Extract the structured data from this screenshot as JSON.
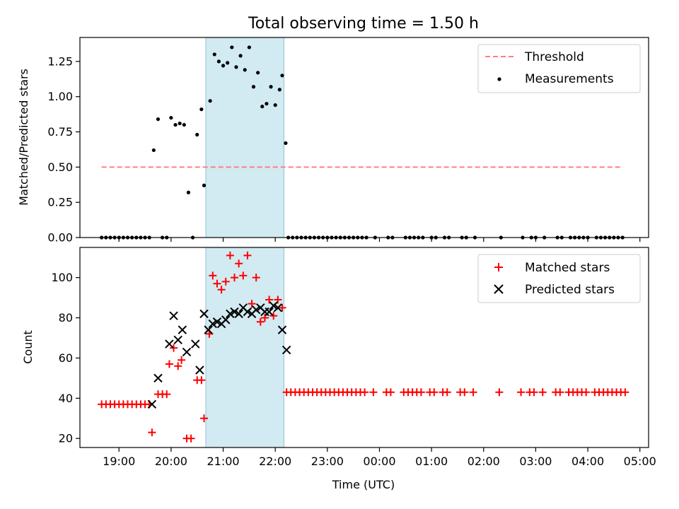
{
  "chart_data": [
    {
      "type": "scatter",
      "title": "Total observing time = 1.50 h",
      "ylabel": "Matched/Predicted stars",
      "xlabel": "",
      "ylim": [
        0,
        1.42
      ],
      "yticks": [
        0.0,
        0.25,
        0.5,
        0.75,
        1.0,
        1.25
      ],
      "ytick_labels": [
        "0.00",
        "0.25",
        "0.50",
        "0.75",
        "1.00",
        "1.25"
      ],
      "grid": false,
      "legend_position": "top-right",
      "shaded_region": {
        "x_start": "20:40",
        "x_end": "22:10",
        "color": "#add8e6"
      },
      "series": [
        {
          "name": "Threshold",
          "style": "dashed-line",
          "color": "#ff7f7f",
          "points": [
            {
              "x": "18:40",
              "y": 0.5
            },
            {
              "x": "04:40",
              "y": 0.5
            }
          ]
        },
        {
          "name": "Measurements",
          "style": "dot",
          "color": "#000000",
          "points": [
            {
              "x": "18:40",
              "y": 0
            },
            {
              "x": "18:45",
              "y": 0
            },
            {
              "x": "18:50",
              "y": 0
            },
            {
              "x": "18:55",
              "y": 0
            },
            {
              "x": "19:00",
              "y": 0
            },
            {
              "x": "19:05",
              "y": 0
            },
            {
              "x": "19:10",
              "y": 0
            },
            {
              "x": "19:15",
              "y": 0
            },
            {
              "x": "19:20",
              "y": 0
            },
            {
              "x": "19:25",
              "y": 0
            },
            {
              "x": "19:30",
              "y": 0
            },
            {
              "x": "19:35",
              "y": 0
            },
            {
              "x": "19:40",
              "y": 0.62
            },
            {
              "x": "19:45",
              "y": 0.84
            },
            {
              "x": "19:50",
              "y": 0
            },
            {
              "x": "19:55",
              "y": 0
            },
            {
              "x": "20:00",
              "y": 0.85
            },
            {
              "x": "20:05",
              "y": 0.8
            },
            {
              "x": "20:10",
              "y": 0.81
            },
            {
              "x": "20:15",
              "y": 0.8
            },
            {
              "x": "20:20",
              "y": 0.32
            },
            {
              "x": "20:25",
              "y": 0
            },
            {
              "x": "20:30",
              "y": 0.73
            },
            {
              "x": "20:35",
              "y": 0.91
            },
            {
              "x": "20:38",
              "y": 0.37
            },
            {
              "x": "20:45",
              "y": 0.97
            },
            {
              "x": "20:50",
              "y": 1.3
            },
            {
              "x": "20:55",
              "y": 1.25
            },
            {
              "x": "21:00",
              "y": 1.22
            },
            {
              "x": "21:05",
              "y": 1.24
            },
            {
              "x": "21:10",
              "y": 1.35
            },
            {
              "x": "21:15",
              "y": 1.21
            },
            {
              "x": "21:20",
              "y": 1.29
            },
            {
              "x": "21:25",
              "y": 1.19
            },
            {
              "x": "21:30",
              "y": 1.35
            },
            {
              "x": "21:35",
              "y": 1.07
            },
            {
              "x": "21:40",
              "y": 1.17
            },
            {
              "x": "21:45",
              "y": 0.93
            },
            {
              "x": "21:50",
              "y": 0.95
            },
            {
              "x": "21:55",
              "y": 1.07
            },
            {
              "x": "22:00",
              "y": 0.94
            },
            {
              "x": "22:05",
              "y": 1.05
            },
            {
              "x": "22:08",
              "y": 1.15
            },
            {
              "x": "22:12",
              "y": 0.67
            },
            {
              "x": "22:15",
              "y": 0
            },
            {
              "x": "22:20",
              "y": 0
            },
            {
              "x": "22:25",
              "y": 0
            },
            {
              "x": "22:30",
              "y": 0
            },
            {
              "x": "22:35",
              "y": 0
            },
            {
              "x": "22:40",
              "y": 0
            },
            {
              "x": "22:45",
              "y": 0
            },
            {
              "x": "22:50",
              "y": 0
            },
            {
              "x": "22:55",
              "y": 0
            },
            {
              "x": "23:00",
              "y": 0
            },
            {
              "x": "23:05",
              "y": 0
            },
            {
              "x": "23:10",
              "y": 0
            },
            {
              "x": "23:15",
              "y": 0
            },
            {
              "x": "23:20",
              "y": 0
            },
            {
              "x": "23:25",
              "y": 0
            },
            {
              "x": "23:30",
              "y": 0
            },
            {
              "x": "23:35",
              "y": 0
            },
            {
              "x": "23:40",
              "y": 0
            },
            {
              "x": "23:45",
              "y": 0
            },
            {
              "x": "23:55",
              "y": 0
            },
            {
              "x": "00:10",
              "y": 0
            },
            {
              "x": "00:15",
              "y": 0
            },
            {
              "x": "00:30",
              "y": 0
            },
            {
              "x": "00:35",
              "y": 0
            },
            {
              "x": "00:40",
              "y": 0
            },
            {
              "x": "00:45",
              "y": 0
            },
            {
              "x": "00:50",
              "y": 0
            },
            {
              "x": "01:00",
              "y": 0
            },
            {
              "x": "01:05",
              "y": 0
            },
            {
              "x": "01:15",
              "y": 0
            },
            {
              "x": "01:20",
              "y": 0
            },
            {
              "x": "01:35",
              "y": 0
            },
            {
              "x": "01:40",
              "y": 0
            },
            {
              "x": "01:50",
              "y": 0
            },
            {
              "x": "02:20",
              "y": 0
            },
            {
              "x": "02:45",
              "y": 0
            },
            {
              "x": "02:55",
              "y": 0
            },
            {
              "x": "03:00",
              "y": 0
            },
            {
              "x": "03:10",
              "y": 0
            },
            {
              "x": "03:25",
              "y": 0
            },
            {
              "x": "03:30",
              "y": 0
            },
            {
              "x": "03:40",
              "y": 0
            },
            {
              "x": "03:45",
              "y": 0
            },
            {
              "x": "03:50",
              "y": 0
            },
            {
              "x": "03:55",
              "y": 0
            },
            {
              "x": "04:00",
              "y": 0
            },
            {
              "x": "04:10",
              "y": 0
            },
            {
              "x": "04:15",
              "y": 0
            },
            {
              "x": "04:20",
              "y": 0
            },
            {
              "x": "04:25",
              "y": 0
            },
            {
              "x": "04:30",
              "y": 0
            },
            {
              "x": "04:35",
              "y": 0
            },
            {
              "x": "04:40",
              "y": 0
            }
          ]
        }
      ]
    },
    {
      "type": "scatter",
      "title": "",
      "ylabel": "Count",
      "xlabel": "Time (UTC)",
      "ylim": [
        15.5,
        115
      ],
      "yticks": [
        20,
        40,
        60,
        80,
        100
      ],
      "ytick_labels": [
        "20",
        "40",
        "60",
        "80",
        "100"
      ],
      "grid": false,
      "legend_position": "top-right",
      "shaded_region": {
        "x_start": "20:40",
        "x_end": "22:10",
        "color": "#add8e6"
      },
      "series": [
        {
          "name": "Matched stars",
          "style": "plus",
          "color": "#ff0000",
          "points": [
            {
              "x": "18:40",
              "y": 37
            },
            {
              "x": "18:45",
              "y": 37
            },
            {
              "x": "18:50",
              "y": 37
            },
            {
              "x": "18:55",
              "y": 37
            },
            {
              "x": "19:00",
              "y": 37
            },
            {
              "x": "19:05",
              "y": 37
            },
            {
              "x": "19:10",
              "y": 37
            },
            {
              "x": "19:15",
              "y": 37
            },
            {
              "x": "19:20",
              "y": 37
            },
            {
              "x": "19:25",
              "y": 37
            },
            {
              "x": "19:30",
              "y": 37
            },
            {
              "x": "19:35",
              "y": 37
            },
            {
              "x": "19:38",
              "y": 23
            },
            {
              "x": "19:45",
              "y": 42
            },
            {
              "x": "19:50",
              "y": 42
            },
            {
              "x": "19:55",
              "y": 42
            },
            {
              "x": "19:58",
              "y": 57
            },
            {
              "x": "20:03",
              "y": 65
            },
            {
              "x": "20:08",
              "y": 56
            },
            {
              "x": "20:12",
              "y": 59
            },
            {
              "x": "20:18",
              "y": 20
            },
            {
              "x": "20:23",
              "y": 20
            },
            {
              "x": "20:30",
              "y": 49
            },
            {
              "x": "20:35",
              "y": 49
            },
            {
              "x": "20:38",
              "y": 30
            },
            {
              "x": "20:44",
              "y": 72
            },
            {
              "x": "20:48",
              "y": 101
            },
            {
              "x": "20:53",
              "y": 97
            },
            {
              "x": "20:58",
              "y": 94
            },
            {
              "x": "21:03",
              "y": 98
            },
            {
              "x": "21:08",
              "y": 111
            },
            {
              "x": "21:13",
              "y": 100
            },
            {
              "x": "21:18",
              "y": 107
            },
            {
              "x": "21:23",
              "y": 101
            },
            {
              "x": "21:28",
              "y": 111
            },
            {
              "x": "21:33",
              "y": 87
            },
            {
              "x": "21:38",
              "y": 100
            },
            {
              "x": "21:43",
              "y": 78
            },
            {
              "x": "21:48",
              "y": 80
            },
            {
              "x": "21:53",
              "y": 89
            },
            {
              "x": "21:58",
              "y": 81
            },
            {
              "x": "22:03",
              "y": 89
            },
            {
              "x": "22:08",
              "y": 85
            },
            {
              "x": "22:13",
              "y": 43
            },
            {
              "x": "22:18",
              "y": 43
            },
            {
              "x": "22:23",
              "y": 43
            },
            {
              "x": "22:28",
              "y": 43
            },
            {
              "x": "22:33",
              "y": 43
            },
            {
              "x": "22:38",
              "y": 43
            },
            {
              "x": "22:43",
              "y": 43
            },
            {
              "x": "22:48",
              "y": 43
            },
            {
              "x": "22:53",
              "y": 43
            },
            {
              "x": "22:58",
              "y": 43
            },
            {
              "x": "23:03",
              "y": 43
            },
            {
              "x": "23:08",
              "y": 43
            },
            {
              "x": "23:13",
              "y": 43
            },
            {
              "x": "23:18",
              "y": 43
            },
            {
              "x": "23:23",
              "y": 43
            },
            {
              "x": "23:28",
              "y": 43
            },
            {
              "x": "23:33",
              "y": 43
            },
            {
              "x": "23:38",
              "y": 43
            },
            {
              "x": "23:43",
              "y": 43
            },
            {
              "x": "23:53",
              "y": 43
            },
            {
              "x": "00:08",
              "y": 43
            },
            {
              "x": "00:13",
              "y": 43
            },
            {
              "x": "00:28",
              "y": 43
            },
            {
              "x": "00:33",
              "y": 43
            },
            {
              "x": "00:38",
              "y": 43
            },
            {
              "x": "00:43",
              "y": 43
            },
            {
              "x": "00:48",
              "y": 43
            },
            {
              "x": "00:58",
              "y": 43
            },
            {
              "x": "01:03",
              "y": 43
            },
            {
              "x": "01:13",
              "y": 43
            },
            {
              "x": "01:18",
              "y": 43
            },
            {
              "x": "01:33",
              "y": 43
            },
            {
              "x": "01:38",
              "y": 43
            },
            {
              "x": "01:48",
              "y": 43
            },
            {
              "x": "02:18",
              "y": 43
            },
            {
              "x": "02:43",
              "y": 43
            },
            {
              "x": "02:53",
              "y": 43
            },
            {
              "x": "02:58",
              "y": 43
            },
            {
              "x": "03:08",
              "y": 43
            },
            {
              "x": "03:23",
              "y": 43
            },
            {
              "x": "03:28",
              "y": 43
            },
            {
              "x": "03:38",
              "y": 43
            },
            {
              "x": "03:43",
              "y": 43
            },
            {
              "x": "03:48",
              "y": 43
            },
            {
              "x": "03:53",
              "y": 43
            },
            {
              "x": "03:58",
              "y": 43
            },
            {
              "x": "04:08",
              "y": 43
            },
            {
              "x": "04:13",
              "y": 43
            },
            {
              "x": "04:18",
              "y": 43
            },
            {
              "x": "04:23",
              "y": 43
            },
            {
              "x": "04:28",
              "y": 43
            },
            {
              "x": "04:33",
              "y": 43
            },
            {
              "x": "04:38",
              "y": 43
            },
            {
              "x": "04:43",
              "y": 43
            }
          ]
        },
        {
          "name": "Predicted stars",
          "style": "x",
          "color": "#000000",
          "points": [
            {
              "x": "19:38",
              "y": 37
            },
            {
              "x": "19:45",
              "y": 50
            },
            {
              "x": "19:58",
              "y": 67
            },
            {
              "x": "20:03",
              "y": 81
            },
            {
              "x": "20:08",
              "y": 69
            },
            {
              "x": "20:13",
              "y": 74
            },
            {
              "x": "20:18",
              "y": 63
            },
            {
              "x": "20:28",
              "y": 67
            },
            {
              "x": "20:33",
              "y": 54
            },
            {
              "x": "20:38",
              "y": 82
            },
            {
              "x": "20:43",
              "y": 74
            },
            {
              "x": "20:48",
              "y": 77
            },
            {
              "x": "20:53",
              "y": 78
            },
            {
              "x": "20:58",
              "y": 77
            },
            {
              "x": "21:03",
              "y": 79
            },
            {
              "x": "21:08",
              "y": 82
            },
            {
              "x": "21:13",
              "y": 83
            },
            {
              "x": "21:18",
              "y": 82
            },
            {
              "x": "21:23",
              "y": 85
            },
            {
              "x": "21:28",
              "y": 83
            },
            {
              "x": "21:33",
              "y": 82
            },
            {
              "x": "21:38",
              "y": 84
            },
            {
              "x": "21:43",
              "y": 85
            },
            {
              "x": "21:48",
              "y": 83
            },
            {
              "x": "21:53",
              "y": 83
            },
            {
              "x": "21:58",
              "y": 86
            },
            {
              "x": "22:03",
              "y": 85
            },
            {
              "x": "22:08",
              "y": 74
            },
            {
              "x": "22:13",
              "y": 64
            }
          ]
        }
      ]
    }
  ],
  "x_axis": {
    "start": "18:15",
    "end": "05:10",
    "ticks": [
      "19:00",
      "20:00",
      "21:00",
      "22:00",
      "23:00",
      "00:00",
      "01:00",
      "02:00",
      "03:00",
      "04:00",
      "05:00"
    ],
    "label": "Time (UTC)"
  }
}
